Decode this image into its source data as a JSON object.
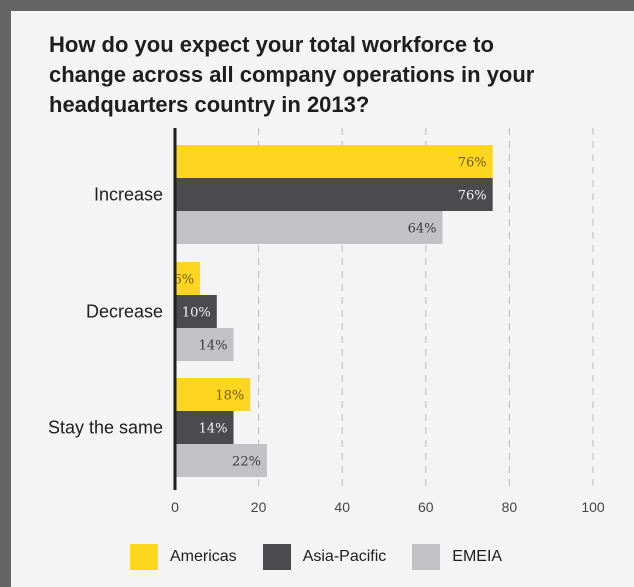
{
  "title": "How do you expect your total workforce to\nchange across all company operations in your\nheadquarters country in 2013?",
  "colors": {
    "background": "#646464",
    "panel": "#f4f4f4",
    "americas": "#ffd61f",
    "asia_pacific": "#4b4b4d",
    "emeia": "#c2c2c4",
    "grid": "#bbbbbb",
    "axis": "#1e1e1e"
  },
  "chart_data": {
    "type": "bar",
    "orientation": "horizontal",
    "categories": [
      "Increase",
      "Decrease",
      "Stay the same"
    ],
    "series": [
      {
        "name": "Americas",
        "values": [
          76,
          6,
          18
        ],
        "labels": [
          "76%",
          "6%",
          "18%"
        ],
        "color": "#ffd61f"
      },
      {
        "name": "Asia-Pacific",
        "values": [
          76,
          10,
          14
        ],
        "labels": [
          "76%",
          "10%",
          "14%"
        ],
        "color": "#4b4b4d"
      },
      {
        "name": "EMEIA",
        "values": [
          64,
          14,
          22
        ],
        "labels": [
          "64%",
          "14%",
          "22%"
        ],
        "color": "#c2c2c4"
      }
    ],
    "xlim": [
      0,
      100
    ],
    "xticks": [
      0,
      20,
      40,
      60,
      80,
      100
    ],
    "xtick_labels": [
      "0",
      "20",
      "40",
      "60",
      "80",
      "100"
    ],
    "grid": true,
    "legend_position": "bottom"
  },
  "legend": [
    {
      "label": "Americas"
    },
    {
      "label": "Asia-Pacific"
    },
    {
      "label": "EMEIA"
    }
  ]
}
